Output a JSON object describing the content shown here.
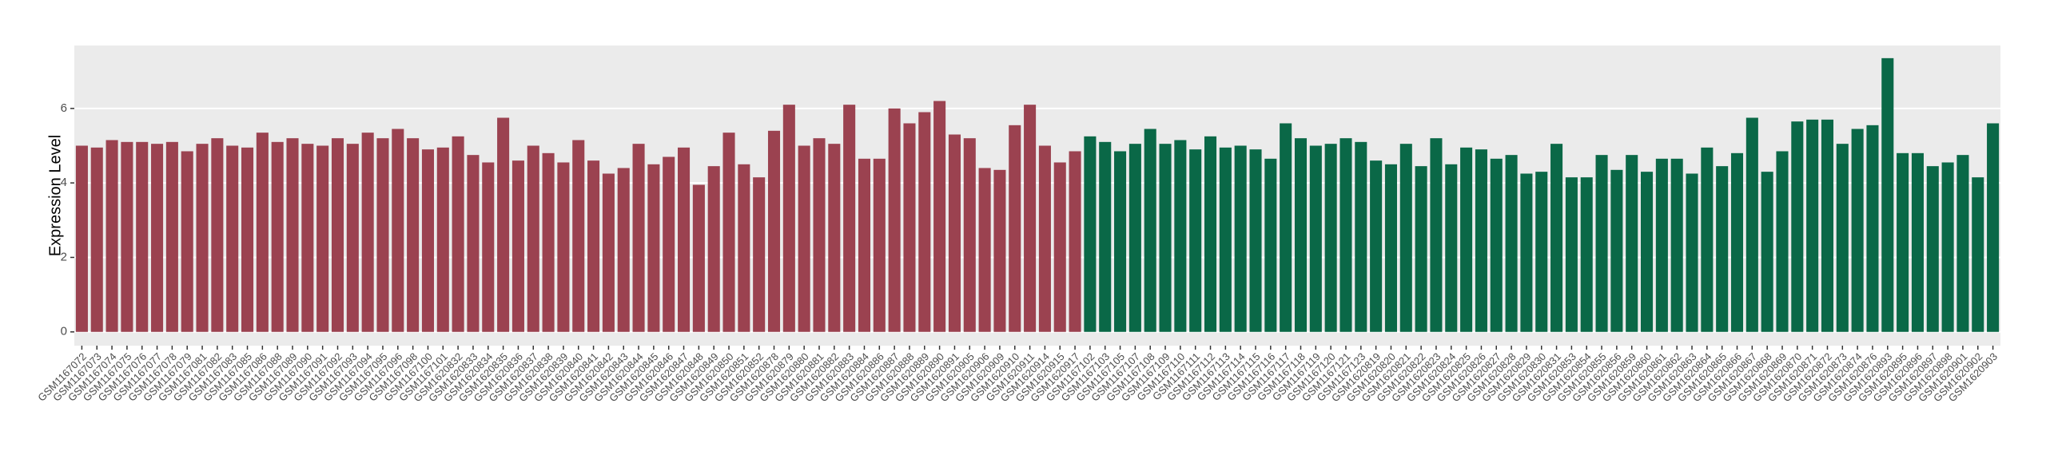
{
  "chart_data": {
    "type": "bar",
    "y_label": "Expression Level",
    "categories": [
      "GSM1167072",
      "GSM1167073",
      "GSM1167074",
      "GSM1167075",
      "GSM1167076",
      "GSM1167077",
      "GSM1167078",
      "GSM1167079",
      "GSM1167081",
      "GSM1167082",
      "GSM1167083",
      "GSM1167085",
      "GSM1167086",
      "GSM1167088",
      "GSM1167089",
      "GSM1167090",
      "GSM1167091",
      "GSM1167092",
      "GSM1167093",
      "GSM1167094",
      "GSM1167095",
      "GSM1167096",
      "GSM1167098",
      "GSM1167100",
      "GSM1167101",
      "GSM1620832",
      "GSM1620833",
      "GSM1620834",
      "GSM1620835",
      "GSM1620836",
      "GSM1620837",
      "GSM1620838",
      "GSM1620839",
      "GSM1620840",
      "GSM1620841",
      "GSM1620842",
      "GSM1620843",
      "GSM1620844",
      "GSM1620845",
      "GSM1620846",
      "GSM1620847",
      "GSM1620848",
      "GSM1620849",
      "GSM1620850",
      "GSM1620851",
      "GSM1620852",
      "GSM1620878",
      "GSM1620879",
      "GSM1620880",
      "GSM1620881",
      "GSM1620882",
      "GSM1620883",
      "GSM1620884",
      "GSM1620886",
      "GSM1620887",
      "GSM1620888",
      "GSM1620889",
      "GSM1620890",
      "GSM1620891",
      "GSM1620905",
      "GSM1620906",
      "GSM1620909",
      "GSM1620910",
      "GSM1620911",
      "GSM1620914",
      "GSM1620915",
      "GSM1620917",
      "GSM1167102",
      "GSM1167103",
      "GSM1167105",
      "GSM1167107",
      "GSM1167108",
      "GSM1167109",
      "GSM1167110",
      "GSM1167111",
      "GSM1167112",
      "GSM1167113",
      "GSM1167114",
      "GSM1167115",
      "GSM1167116",
      "GSM1167117",
      "GSM1167118",
      "GSM1167119",
      "GSM1167120",
      "GSM1167121",
      "GSM1167123",
      "GSM1620819",
      "GSM1620820",
      "GSM1620821",
      "GSM1620822",
      "GSM1620823",
      "GSM1620824",
      "GSM1620825",
      "GSM1620826",
      "GSM1620827",
      "GSM1620828",
      "GSM1620829",
      "GSM1620830",
      "GSM1620831",
      "GSM1620853",
      "GSM1620854",
      "GSM1620855",
      "GSM1620856",
      "GSM1620859",
      "GSM1620860",
      "GSM1620861",
      "GSM1620862",
      "GSM1620863",
      "GSM1620864",
      "GSM1620865",
      "GSM1620866",
      "GSM1620867",
      "GSM1620868",
      "GSM1620869",
      "GSM1620870",
      "GSM1620871",
      "GSM1620872",
      "GSM1620873",
      "GSM1620874",
      "GSM1620876",
      "GSM1620893",
      "GSM1620895",
      "GSM1620896",
      "GSM1620897",
      "GSM1620898",
      "GSM1620901",
      "GSM1620902",
      "GSM1620903"
    ],
    "values": [
      5.0,
      4.95,
      5.15,
      5.1,
      5.1,
      5.05,
      5.1,
      4.85,
      5.05,
      5.2,
      5.0,
      4.95,
      5.35,
      5.1,
      5.2,
      5.05,
      5.0,
      5.2,
      5.05,
      5.35,
      5.2,
      5.45,
      5.2,
      4.9,
      4.95,
      5.25,
      4.75,
      4.55,
      5.75,
      4.6,
      5.0,
      4.8,
      4.55,
      5.15,
      4.6,
      4.25,
      4.4,
      5.05,
      4.5,
      4.7,
      4.95,
      3.95,
      4.45,
      5.35,
      4.5,
      4.15,
      5.4,
      6.1,
      5.0,
      5.2,
      5.05,
      6.1,
      4.65,
      4.65,
      6.0,
      5.6,
      5.9,
      6.2,
      5.3,
      5.2,
      4.4,
      4.35,
      5.55,
      6.1,
      5.0,
      4.55,
      4.85,
      5.25,
      5.1,
      4.85,
      5.05,
      5.45,
      5.05,
      5.15,
      4.9,
      5.25,
      4.95,
      5.0,
      4.9,
      4.65,
      5.6,
      5.2,
      5.0,
      5.05,
      5.2,
      5.1,
      4.6,
      4.5,
      5.05,
      4.45,
      5.2,
      4.5,
      4.95,
      4.9,
      4.65,
      4.75,
      4.25,
      4.3,
      5.05,
      4.15,
      4.15,
      4.75,
      4.35,
      4.75,
      4.3,
      4.65,
      4.65,
      4.25,
      4.95,
      4.45,
      4.8,
      5.75,
      4.3,
      4.85,
      5.65,
      5.7,
      5.7,
      5.05,
      5.45,
      5.55,
      7.35,
      4.8,
      4.8,
      4.45,
      4.55,
      4.75,
      4.15,
      5.6
    ],
    "bar_colors": [
      "#9b4250",
      "#9b4250",
      "#9b4250",
      "#9b4250",
      "#9b4250",
      "#9b4250",
      "#9b4250",
      "#9b4250",
      "#9b4250",
      "#9b4250",
      "#9b4250",
      "#9b4250",
      "#9b4250",
      "#9b4250",
      "#9b4250",
      "#9b4250",
      "#9b4250",
      "#9b4250",
      "#9b4250",
      "#9b4250",
      "#9b4250",
      "#9b4250",
      "#9b4250",
      "#9b4250",
      "#9b4250",
      "#9b4250",
      "#9b4250",
      "#9b4250",
      "#9b4250",
      "#9b4250",
      "#9b4250",
      "#9b4250",
      "#9b4250",
      "#9b4250",
      "#9b4250",
      "#9b4250",
      "#9b4250",
      "#9b4250",
      "#9b4250",
      "#9b4250",
      "#9b4250",
      "#9b4250",
      "#9b4250",
      "#9b4250",
      "#9b4250",
      "#9b4250",
      "#9b4250",
      "#9b4250",
      "#9b4250",
      "#9b4250",
      "#9b4250",
      "#9b4250",
      "#9b4250",
      "#9b4250",
      "#9b4250",
      "#9b4250",
      "#9b4250",
      "#9b4250",
      "#9b4250",
      "#9b4250",
      "#9b4250",
      "#9b4250",
      "#9b4250",
      "#9b4250",
      "#9b4250",
      "#9b4250",
      "#9b4250",
      "#0a6847",
      "#0a6847",
      "#0a6847",
      "#0a6847",
      "#0a6847",
      "#0a6847",
      "#0a6847",
      "#0a6847",
      "#0a6847",
      "#0a6847",
      "#0a6847",
      "#0a6847",
      "#0a6847",
      "#0a6847",
      "#0a6847",
      "#0a6847",
      "#0a6847",
      "#0a6847",
      "#0a6847",
      "#0a6847",
      "#0a6847",
      "#0a6847",
      "#0a6847",
      "#0a6847",
      "#0a6847",
      "#0a6847",
      "#0a6847",
      "#0a6847",
      "#0a6847",
      "#0a6847",
      "#0a6847",
      "#0a6847",
      "#0a6847",
      "#0a6847",
      "#0a6847",
      "#0a6847",
      "#0a6847",
      "#0a6847",
      "#0a6847",
      "#0a6847",
      "#0a6847",
      "#0a6847",
      "#0a6847",
      "#0a6847",
      "#0a6847",
      "#0a6847",
      "#0a6847",
      "#0a6847",
      "#0a6847",
      "#0a6847",
      "#0a6847",
      "#0a6847",
      "#0a6847",
      "#0a6847",
      "#0a6847",
      "#0a6847",
      "#0a6847",
      "#0a6847",
      "#0a6847",
      "#0a6847",
      "#0a6847"
    ],
    "ylim": [
      -0.37,
      7.69
    ],
    "yticks": [
      0,
      2,
      4,
      6
    ],
    "grid": true
  }
}
